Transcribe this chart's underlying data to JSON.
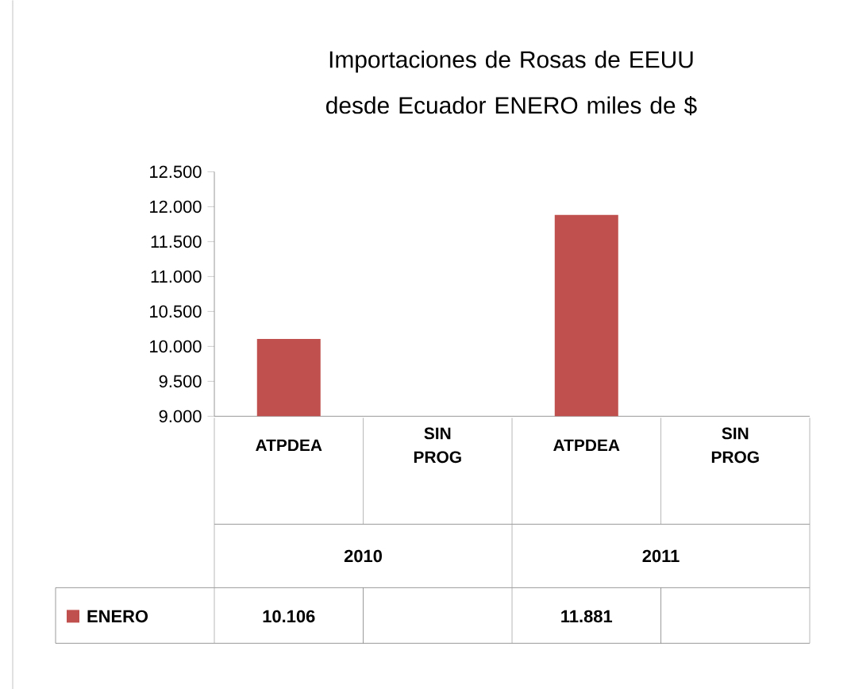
{
  "chart_data": {
    "type": "bar",
    "title": "Importaciones de Rosas de EEUU desde Ecuador ENERO miles de $",
    "categories": [
      "ATPDEA",
      "SIN PROG",
      "ATPDEA",
      "SIN PROG"
    ],
    "annotations": [
      "2010",
      "2011"
    ],
    "series": [
      {
        "name": "ENERO",
        "color": "#c0504d",
        "values": [
          10106,
          null,
          11881,
          null
        ],
        "value_labels": [
          "10.106",
          null,
          "11.881",
          null
        ]
      }
    ],
    "ylim": [
      9000,
      12500
    ],
    "yticks": [
      {
        "value": 9000,
        "label": "9.000"
      },
      {
        "value": 9500,
        "label": "9.500"
      },
      {
        "value": 10000,
        "label": "10.000"
      },
      {
        "value": 10500,
        "label": "10.500"
      },
      {
        "value": 11000,
        "label": "11.000"
      },
      {
        "value": 11500,
        "label": "11.500"
      },
      {
        "value": 12000,
        "label": "12.000"
      },
      {
        "value": 12500,
        "label": "12.500"
      }
    ],
    "grid": false,
    "legend": "bottom"
  }
}
